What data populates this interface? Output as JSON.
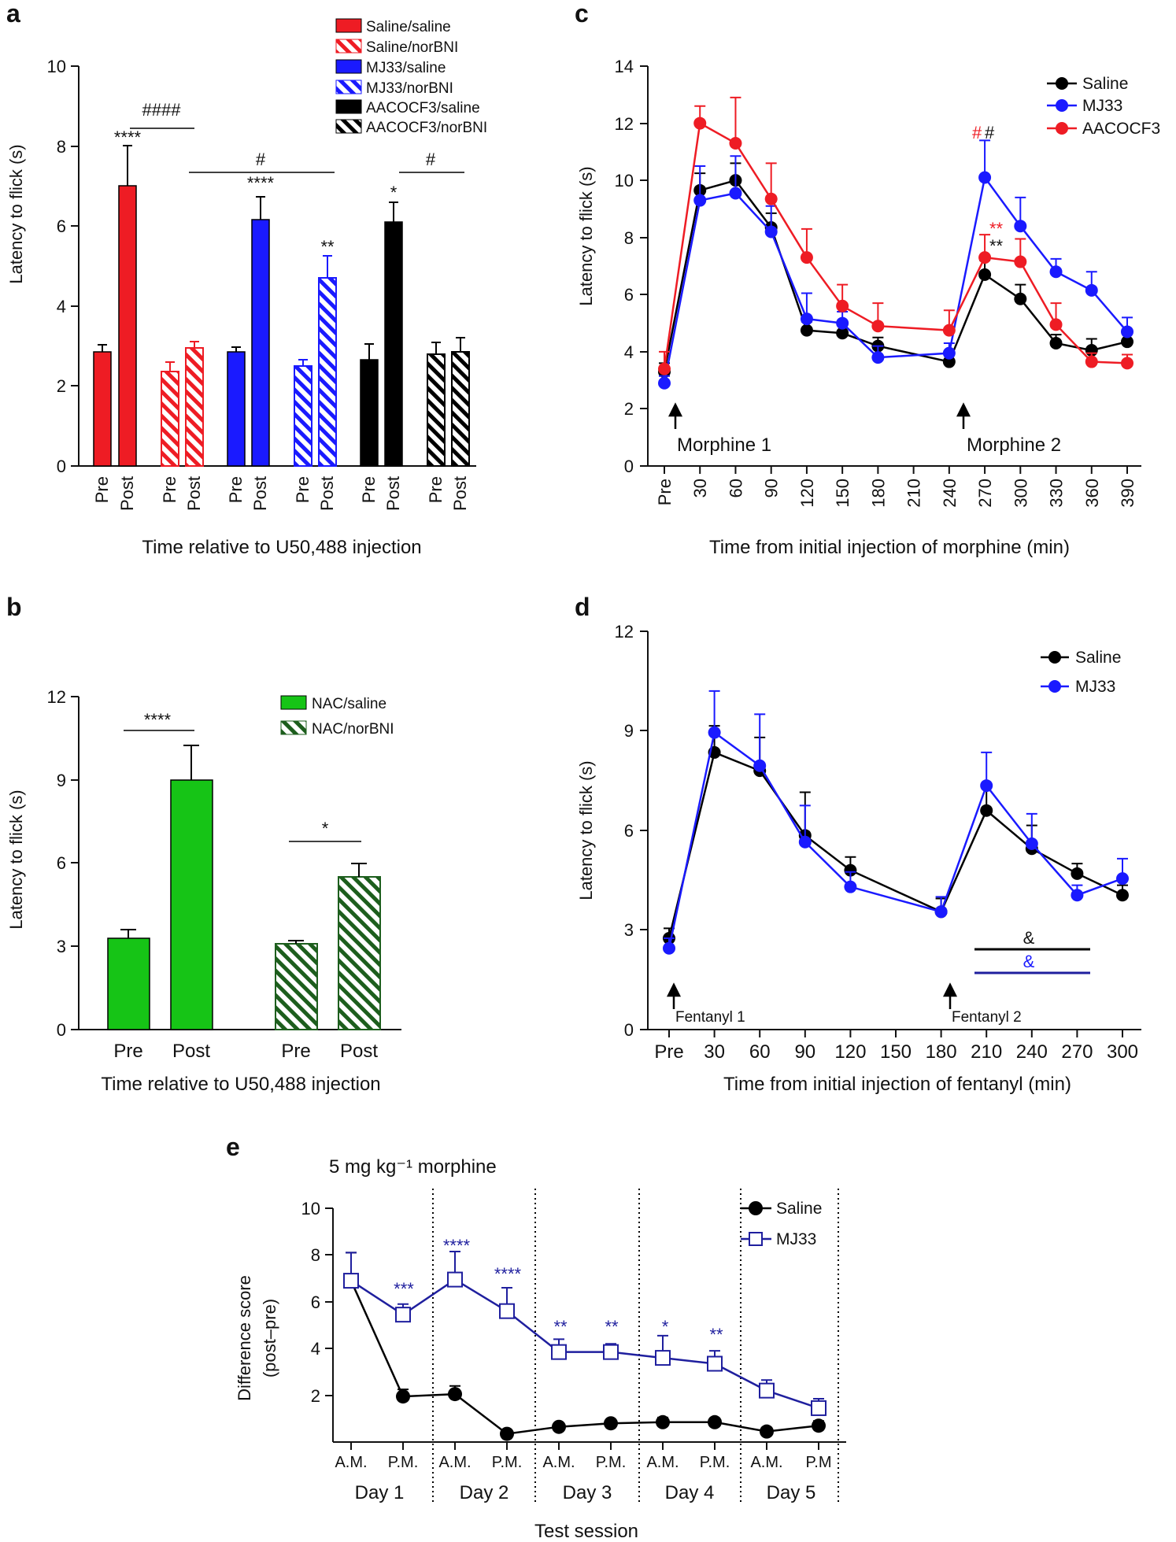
{
  "figure": {
    "panels": [
      "a",
      "b",
      "c",
      "d",
      "e"
    ]
  },
  "colors": {
    "red": "#ee1c24",
    "blue": "#1a1aff",
    "black": "#000000",
    "green": "#16c416",
    "dkgreen": "#1d5e1d",
    "navy": "#1f1f9e"
  },
  "chart_data": [
    {
      "panel": "a",
      "type": "bar",
      "ylabel": "Latency to flick (s)",
      "xlabel": "Time relative to U50,488 injection",
      "ylim": [
        0,
        10
      ],
      "yticks": [
        "0",
        "2",
        "4",
        "6",
        "8",
        "10"
      ],
      "categories": [
        "Pre",
        "Post"
      ],
      "groups": [
        {
          "name": "Saline/saline",
          "color": "red",
          "hatch": false,
          "values": [
            2.85,
            7.0
          ],
          "errors": [
            0.17,
            1.0
          ]
        },
        {
          "name": "Saline/norBNI",
          "color": "red",
          "hatch": true,
          "values": [
            2.35,
            2.95
          ],
          "errors": [
            0.23,
            0.15
          ]
        },
        {
          "name": "MJ33/saline",
          "color": "blue",
          "hatch": false,
          "values": [
            2.85,
            6.15
          ],
          "errors": [
            0.12,
            0.57
          ]
        },
        {
          "name": "MJ33/norBNI",
          "color": "blue",
          "hatch": true,
          "values": [
            2.5,
            4.7
          ],
          "errors": [
            0.15,
            0.55
          ]
        },
        {
          "name": "AACOCF3/saline",
          "color": "black",
          "hatch": false,
          "values": [
            2.65,
            6.1
          ],
          "errors": [
            0.4,
            0.5
          ]
        },
        {
          "name": "AACOCF3/norBNI",
          "color": "black",
          "hatch": true,
          "values": [
            2.8,
            2.85
          ],
          "errors": [
            0.3,
            0.35
          ]
        }
      ],
      "annotations": [
        "****",
        "####",
        "#",
        "****",
        "**",
        "*",
        "#"
      ]
    },
    {
      "panel": "b",
      "type": "bar",
      "ylabel": "Latency to flick (s)",
      "xlabel": "Time relative to U50,488 injection",
      "ylim": [
        0,
        12
      ],
      "yticks": [
        "0",
        "3",
        "6",
        "9",
        "12"
      ],
      "categories": [
        "Pre",
        "Post"
      ],
      "groups": [
        {
          "name": "NAC/saline",
          "color": "green",
          "hatch": false,
          "values": [
            3.3,
            9.0
          ],
          "errors": [
            0.3,
            1.25
          ]
        },
        {
          "name": "NAC/norBNI",
          "color": "dkgreen",
          "hatch": true,
          "values": [
            3.1,
            5.5
          ],
          "errors": [
            0.12,
            0.5
          ]
        }
      ],
      "annotations": [
        "****",
        "*"
      ]
    },
    {
      "panel": "c",
      "type": "line",
      "ylabel": "Latency to flick (s)",
      "xlabel": "Time from initial injection of morphine (min)",
      "ylim": [
        0,
        14
      ],
      "yticks": [
        "0",
        "2",
        "4",
        "6",
        "8",
        "10",
        "12",
        "14"
      ],
      "x": [
        "Pre",
        "30",
        "60",
        "90",
        "120",
        "150",
        "180",
        "210",
        "240",
        "270",
        "300",
        "330",
        "360",
        "390"
      ],
      "series": [
        {
          "name": "Saline",
          "color": "black",
          "values": [
            3.3,
            9.65,
            10.0,
            8.35,
            4.75,
            4.65,
            4.2,
            null,
            3.65,
            6.7,
            5.85,
            4.3,
            4.05,
            4.35
          ],
          "errors": [
            0.3,
            0.6,
            0.6,
            0.5,
            0.3,
            0.3,
            0.3,
            null,
            0.25,
            0.5,
            0.5,
            0.3,
            0.4,
            0.3
          ]
        },
        {
          "name": "MJ33",
          "color": "blue",
          "values": [
            2.9,
            9.3,
            9.55,
            8.2,
            5.15,
            5.0,
            3.8,
            null,
            3.95,
            10.1,
            8.4,
            6.8,
            6.15,
            4.7
          ],
          "errors": [
            0.25,
            1.2,
            1.3,
            0.9,
            0.9,
            0.4,
            0.4,
            null,
            0.35,
            1.3,
            1.0,
            0.45,
            0.65,
            0.5
          ]
        },
        {
          "name": "AACOCF3",
          "color": "red",
          "values": [
            3.4,
            12.0,
            11.3,
            9.35,
            7.3,
            5.6,
            4.9,
            null,
            4.75,
            7.3,
            7.15,
            4.95,
            3.65,
            3.6
          ],
          "errors": [
            0.6,
            0.6,
            1.6,
            1.25,
            1.0,
            0.75,
            0.8,
            null,
            0.7,
            0.8,
            0.8,
            0.75,
            0.3,
            0.3
          ]
        }
      ],
      "annotations": [
        "Morphine 1",
        "Morphine 2",
        "#",
        "#",
        "**",
        "**"
      ]
    },
    {
      "panel": "d",
      "type": "line",
      "ylabel": "Latency to flick (s)",
      "xlabel": "Time from initial injection of fentanyl (min)",
      "ylim": [
        0,
        12
      ],
      "yticks": [
        "0",
        "3",
        "6",
        "9",
        "12"
      ],
      "x": [
        "Pre",
        "30",
        "60",
        "90",
        "120",
        "150",
        "180",
        "210",
        "240",
        "270",
        "300"
      ],
      "series": [
        {
          "name": "Saline",
          "color": "black",
          "values": [
            2.75,
            8.35,
            7.8,
            5.85,
            4.8,
            null,
            3.55,
            6.6,
            5.45,
            4.7,
            4.05
          ],
          "errors": [
            0.3,
            0.8,
            1.0,
            1.3,
            0.4,
            null,
            0.4,
            0.75,
            0.7,
            0.3,
            0.3
          ]
        },
        {
          "name": "MJ33",
          "color": "blue",
          "values": [
            2.45,
            8.95,
            7.95,
            5.65,
            4.3,
            null,
            3.55,
            7.35,
            5.6,
            4.05,
            4.55
          ],
          "errors": [
            0.3,
            1.25,
            1.55,
            1.1,
            0.45,
            null,
            0.45,
            1.0,
            0.9,
            0.3,
            0.6
          ]
        }
      ],
      "annotations": [
        "Fentanyl 1",
        "Fentanyl 2",
        "&",
        "&"
      ]
    },
    {
      "panel": "e",
      "type": "line",
      "title": "5 mg kg⁻¹ morphine",
      "ylabel": "Difference score",
      "ylabel2": "(post–pre)",
      "xlabel": "Test session",
      "ylim": [
        0,
        10
      ],
      "yticks": [
        "2",
        "4",
        "6",
        "8",
        "10"
      ],
      "x": [
        "A.M.",
        "P.M.",
        "A.M.",
        "P.M.",
        "A.M.",
        "P.M.",
        "A.M.",
        "P.M.",
        "A.M.",
        "P.M"
      ],
      "days": [
        "Day 1",
        "Day 2",
        "Day 3",
        "Day 4",
        "Day 5"
      ],
      "series": [
        {
          "name": "Saline",
          "color": "black",
          "marker": "circle",
          "values": [
            6.9,
            1.95,
            2.05,
            0.35,
            0.65,
            0.8,
            0.85,
            0.85,
            0.45,
            0.7
          ],
          "errors": [
            1.2,
            0.3,
            0.35,
            0.1,
            0.1,
            0.15,
            0.2,
            0.15,
            0.15,
            0.2
          ]
        },
        {
          "name": "MJ33",
          "color": "navy",
          "marker": "square",
          "values": [
            6.9,
            5.45,
            6.95,
            5.6,
            3.85,
            3.85,
            3.6,
            3.35,
            2.2,
            1.45
          ],
          "errors": [
            1.2,
            0.45,
            1.2,
            1.0,
            0.55,
            0.35,
            0.95,
            0.55,
            0.45,
            0.4
          ]
        }
      ],
      "annotations": [
        "***",
        "****",
        "****",
        "**",
        "**",
        "*",
        "**"
      ]
    }
  ]
}
